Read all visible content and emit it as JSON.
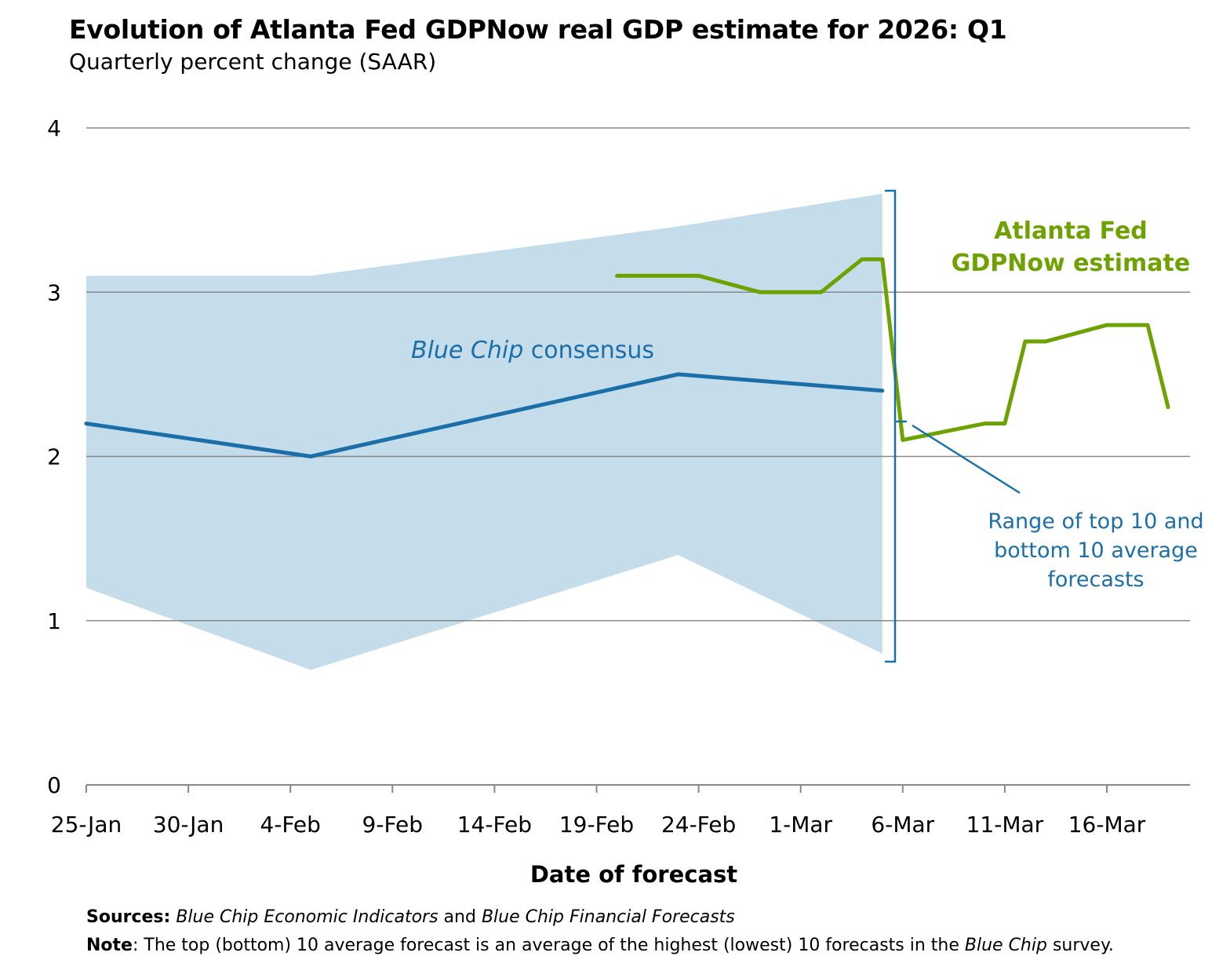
{
  "chart_data": {
    "type": "line",
    "title": "Evolution of Atlanta Fed GDPNow real GDP estimate for 2026: Q1",
    "subtitle": "Quarterly percent change (SAAR)",
    "xlabel": "Date of forecast",
    "ylabel": "",
    "ylim": [
      0,
      4
    ],
    "xlim": [
      "2026-01-25",
      "2026-03-20"
    ],
    "yticks": [
      "0",
      "1",
      "2",
      "3",
      "4"
    ],
    "xticks": [
      {
        "date": "2026-01-25",
        "label": "25-Jan"
      },
      {
        "date": "2026-01-30",
        "label": "30-Jan"
      },
      {
        "date": "2026-02-04",
        "label": "4-Feb"
      },
      {
        "date": "2026-02-09",
        "label": "9-Feb"
      },
      {
        "date": "2026-02-14",
        "label": "14-Feb"
      },
      {
        "date": "2026-02-19",
        "label": "19-Feb"
      },
      {
        "date": "2026-02-24",
        "label": "24-Feb"
      },
      {
        "date": "2026-03-01",
        "label": "1-Mar"
      },
      {
        "date": "2026-03-06",
        "label": "6-Mar"
      },
      {
        "date": "2026-03-11",
        "label": "11-Mar"
      },
      {
        "date": "2026-03-16",
        "label": "16-Mar"
      }
    ],
    "grid": true,
    "series": [
      {
        "name": "Blue Chip consensus",
        "color": "#1b6fa8",
        "x": [
          "2026-01-25",
          "2026-02-05",
          "2026-02-23",
          "2026-03-05"
        ],
        "values": [
          2.2,
          2.0,
          2.5,
          2.4
        ]
      },
      {
        "name": "Atlanta Fed GDPNow estimate",
        "color": "#6ea102",
        "x": [
          "2026-02-20",
          "2026-02-24",
          "2026-02-27",
          "2026-03-02",
          "2026-03-04",
          "2026-03-05",
          "2026-03-06",
          "2026-03-10",
          "2026-03-11",
          "2026-03-12",
          "2026-03-13",
          "2026-03-16",
          "2026-03-18",
          "2026-03-19"
        ],
        "values": [
          3.1,
          3.1,
          3.0,
          3.0,
          3.2,
          3.2,
          2.1,
          2.2,
          2.2,
          2.7,
          2.7,
          2.8,
          2.8,
          2.3
        ]
      }
    ],
    "band": {
      "name": "Range of top 10 and bottom 10 average forecasts",
      "color": "#c5dcea",
      "x": [
        "2026-01-25",
        "2026-02-05",
        "2026-02-23",
        "2026-03-05"
      ],
      "upper": [
        3.1,
        3.1,
        3.4,
        3.6
      ],
      "lower": [
        1.2,
        0.7,
        1.4,
        0.8
      ]
    },
    "annotations": {
      "bluechip_italic": "Blue Chip",
      "bluechip_rest": " consensus",
      "gdpnow_line1": "Atlanta Fed",
      "gdpnow_line2": "GDPNow estimate",
      "range_line1": "Range of top 10 and",
      "range_line2": "bottom 10 average",
      "range_line3": "forecasts"
    }
  },
  "footer": {
    "sources_label": "Sources:",
    "sources_italic1": "Blue Chip Economic Indicators",
    "sources_and": " and ",
    "sources_italic2": "Blue Chip Financial Forecasts",
    "note_label": "Note",
    "note_text1": ": The top (bottom) 10 average forecast is an average of the highest (lowest) 10 forecasts in the ",
    "note_italic": "Blue Chip",
    "note_text2": " survey."
  }
}
